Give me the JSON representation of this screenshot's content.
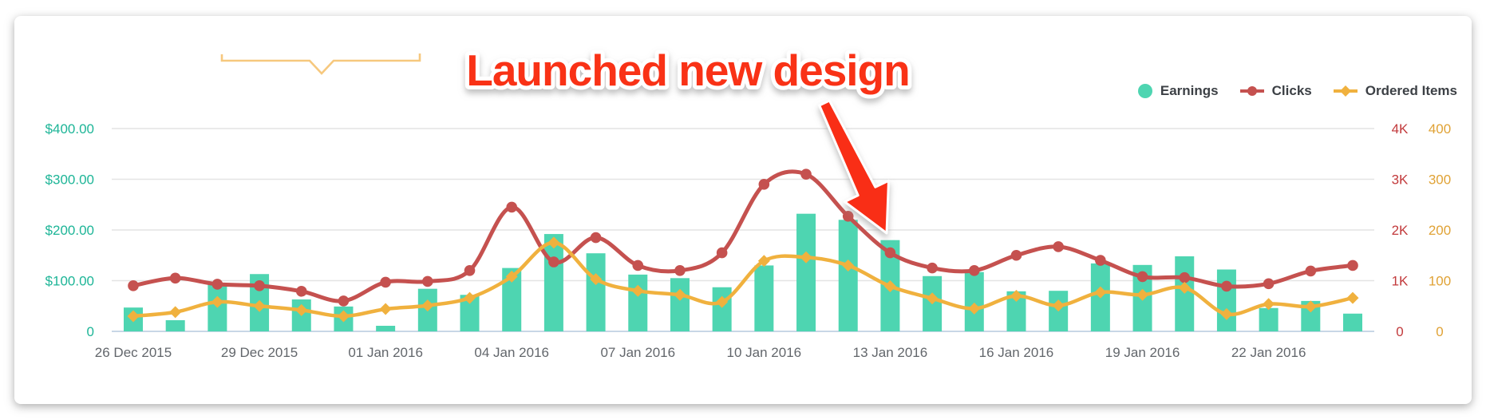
{
  "colors": {
    "earnings_bar": "#4ed5b1",
    "clicks_line": "#c5514f",
    "ordered_line": "#f0b13e",
    "earnings_axis": "#1db597",
    "clicks_axis": "#c23a3c",
    "ordered_axis": "#e0a235",
    "annotation_red": "#f93018",
    "bracket_gold": "#f6c87e",
    "gridline": "#e4e4e4",
    "baseline": "#c8d7e6"
  },
  "legend": {
    "items": [
      {
        "label": "Earnings",
        "marker": "circle-icon",
        "color": "#4ed5b1"
      },
      {
        "label": "Clicks",
        "marker": "line-dot-icon",
        "color": "#c5514f"
      },
      {
        "label": "Ordered Items",
        "marker": "line-diamond-icon",
        "color": "#f0b13e"
      }
    ]
  },
  "chart_data": {
    "type": "combo",
    "title": "",
    "annotation": {
      "text": "Launched new design",
      "arrow_points_to": "13 Jan 2016"
    },
    "x": [
      "26 Dec 2015",
      "27 Dec 2015",
      "28 Dec 2015",
      "29 Dec 2015",
      "30 Dec 2015",
      "31 Dec 2015",
      "01 Jan 2016",
      "02 Jan 2016",
      "03 Jan 2016",
      "04 Jan 2016",
      "05 Jan 2016",
      "06 Jan 2016",
      "07 Jan 2016",
      "08 Jan 2016",
      "09 Jan 2016",
      "10 Jan 2016",
      "11 Jan 2016",
      "12 Jan 2016",
      "13 Jan 2016",
      "14 Jan 2016",
      "15 Jan 2016",
      "16 Jan 2016",
      "17 Jan 2016",
      "18 Jan 2016",
      "19 Jan 2016",
      "20 Jan 2016",
      "21 Jan 2016",
      "22 Jan 2016",
      "23 Jan 2016",
      "24 Jan 2016"
    ],
    "x_tick_labels": [
      "26 Dec 2015",
      "29 Dec 2015",
      "01 Jan 2016",
      "04 Jan 2016",
      "07 Jan 2016",
      "10 Jan 2016",
      "13 Jan 2016",
      "16 Jan 2016",
      "19 Jan 2016",
      "22 Jan 2016"
    ],
    "x_tick_indices": [
      0,
      3,
      6,
      9,
      12,
      15,
      18,
      21,
      24,
      27
    ],
    "series": [
      {
        "name": "Earnings",
        "type": "bar",
        "axis": "left",
        "values": [
          47,
          22,
          94,
          113,
          63,
          49,
          11,
          84,
          72,
          125,
          192,
          154,
          112,
          105,
          87,
          130,
          232,
          220,
          180,
          109,
          117,
          79,
          80,
          134,
          131,
          148,
          122,
          46,
          60,
          35
        ]
      },
      {
        "name": "Clicks",
        "type": "line",
        "axis": "right_clicks",
        "values": [
          900,
          1050,
          930,
          900,
          790,
          600,
          970,
          985,
          1200,
          2450,
          1370,
          1850,
          1300,
          1200,
          1550,
          2900,
          3100,
          2270,
          1550,
          1250,
          1200,
          1500,
          1670,
          1400,
          1080,
          1060,
          890,
          940,
          1190,
          1300
        ]
      },
      {
        "name": "Ordered Items",
        "type": "line",
        "axis": "right_ordered",
        "values": [
          30,
          38,
          58,
          50,
          42,
          30,
          44,
          51,
          66,
          108,
          175,
          103,
          80,
          72,
          58,
          139,
          146,
          130,
          89,
          65,
          45,
          70,
          51,
          77,
          72,
          86,
          34,
          54,
          49,
          66
        ]
      }
    ],
    "left_axis": {
      "range": [
        0,
        400
      ],
      "ticks": [
        "0",
        "$100.00",
        "$200.00",
        "$300.00",
        "$400.00"
      ]
    },
    "right_axis_clicks": {
      "range": [
        0,
        4000
      ],
      "ticks": [
        "0",
        "1K",
        "2K",
        "3K",
        "4K"
      ]
    },
    "right_axis_ordered": {
      "range": [
        0,
        400
      ],
      "ticks": [
        "0",
        "100",
        "200",
        "300",
        "400"
      ]
    },
    "grid": "horizontal-on"
  }
}
